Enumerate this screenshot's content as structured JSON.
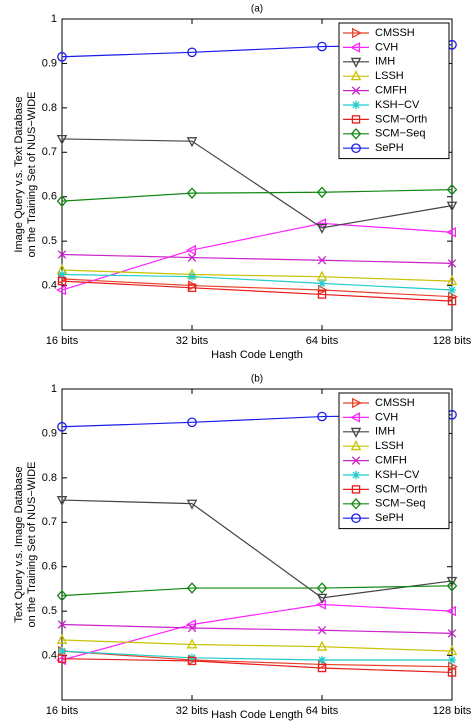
{
  "chart_data": [
    {
      "type": "line",
      "title": "(a)",
      "xlabel": "Hash Code Length",
      "ylabel_lines": [
        "Image Query v.s. Text Database",
        "on the Training Set of NUS−WIDE"
      ],
      "categories": [
        "16 bits",
        "32 bits",
        "64 bits",
        "128 bits"
      ],
      "ylim": [
        0.3,
        1.0
      ],
      "yticks": [
        0.4,
        0.5,
        0.6,
        0.7,
        0.8,
        0.9
      ],
      "ytick_labels": [
        "0.4",
        "0.5",
        "0.6",
        "0.7",
        "0.8",
        "0.9"
      ],
      "ytick_top_label": "1",
      "legend_position": "top-right",
      "series": [
        {
          "name": "CMSSH",
          "color": "#e8432b",
          "marker": "tri-right",
          "values": [
            0.415,
            0.4,
            0.39,
            0.375
          ]
        },
        {
          "name": "CVH",
          "color": "#ff22ff",
          "marker": "tri-left",
          "values": [
            0.39,
            0.48,
            0.54,
            0.52
          ]
        },
        {
          "name": "IMH",
          "color": "#444444",
          "marker": "tri-down",
          "values": [
            0.73,
            0.725,
            0.53,
            0.58
          ]
        },
        {
          "name": "LSSH",
          "color": "#c8c200",
          "marker": "tri-up",
          "values": [
            0.435,
            0.425,
            0.42,
            0.41
          ]
        },
        {
          "name": "CMFH",
          "color": "#cc22cc",
          "marker": "x",
          "values": [
            0.47,
            0.463,
            0.457,
            0.45
          ]
        },
        {
          "name": "KSH−CV",
          "color": "#22cccc",
          "marker": "star",
          "values": [
            0.425,
            0.42,
            0.405,
            0.39
          ]
        },
        {
          "name": "SCM−Orth",
          "color": "#e81c1c",
          "marker": "square",
          "values": [
            0.41,
            0.395,
            0.38,
            0.365
          ]
        },
        {
          "name": "SCM−Seq",
          "color": "#118811",
          "marker": "diamond",
          "values": [
            0.59,
            0.608,
            0.61,
            0.616
          ]
        },
        {
          "name": "SePH",
          "color": "#1a1aee",
          "marker": "circle",
          "values": [
            0.915,
            0.925,
            0.938,
            0.942
          ]
        }
      ]
    },
    {
      "type": "line",
      "title": "(b)",
      "xlabel": "Hash Code Length",
      "ylabel_lines": [
        "Text Query v.s. Image Database",
        "on the Training Set of NUS−WIDE"
      ],
      "categories": [
        "16 bits",
        "32 bits",
        "64 bits",
        "128 bits"
      ],
      "ylim": [
        0.3,
        1.0
      ],
      "yticks": [
        0.4,
        0.5,
        0.6,
        0.7,
        0.8,
        0.9
      ],
      "ytick_labels": [
        "0.4",
        "0.5",
        "0.6",
        "0.7",
        "0.8",
        "0.9"
      ],
      "ytick_top_label": "1",
      "legend_position": "top-right",
      "series": [
        {
          "name": "CMSSH",
          "color": "#e8432b",
          "marker": "tri-right",
          "values": [
            0.41,
            0.39,
            0.38,
            0.375
          ]
        },
        {
          "name": "CVH",
          "color": "#ff22ff",
          "marker": "tri-left",
          "values": [
            0.39,
            0.47,
            0.515,
            0.5
          ]
        },
        {
          "name": "IMH",
          "color": "#444444",
          "marker": "tri-down",
          "values": [
            0.75,
            0.742,
            0.53,
            0.568
          ]
        },
        {
          "name": "LSSH",
          "color": "#c8c200",
          "marker": "tri-up",
          "values": [
            0.435,
            0.425,
            0.42,
            0.41
          ]
        },
        {
          "name": "CMFH",
          "color": "#cc22cc",
          "marker": "x",
          "values": [
            0.47,
            0.462,
            0.457,
            0.45
          ]
        },
        {
          "name": "KSH−CV",
          "color": "#22cccc",
          "marker": "star",
          "values": [
            0.41,
            0.395,
            0.39,
            0.39
          ]
        },
        {
          "name": "SCM−Orth",
          "color": "#e81c1c",
          "marker": "square",
          "values": [
            0.393,
            0.388,
            0.372,
            0.362
          ]
        },
        {
          "name": "SCM−Seq",
          "color": "#118811",
          "marker": "diamond",
          "values": [
            0.535,
            0.552,
            0.552,
            0.557
          ]
        },
        {
          "name": "SePH",
          "color": "#1a1aee",
          "marker": "circle",
          "values": [
            0.915,
            0.925,
            0.938,
            0.942
          ]
        }
      ]
    }
  ]
}
